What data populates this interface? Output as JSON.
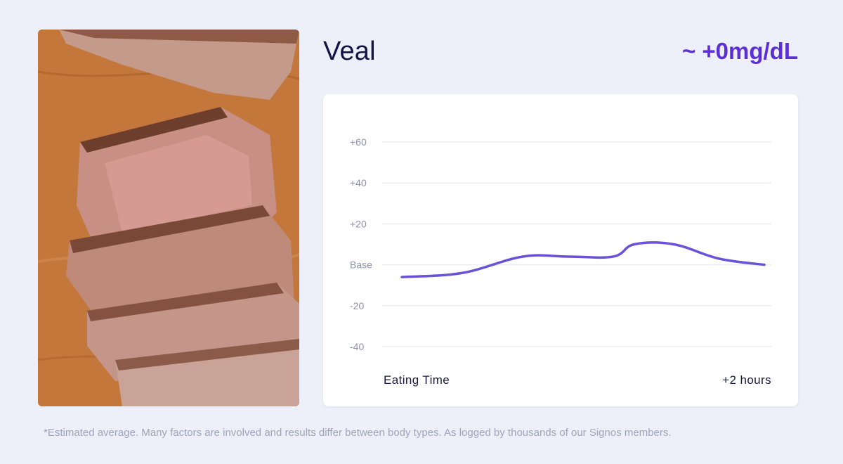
{
  "food": {
    "name": "Veal",
    "glucose_change": "~ +0mg/dL",
    "image": "sliced-veal-roast-photo"
  },
  "chart_data": {
    "type": "line",
    "title": "",
    "xlabel": "",
    "ylabel": "",
    "x_labels": [
      "Eating Time",
      "+2 hours"
    ],
    "y_ticks": [
      {
        "value": 60,
        "label": "+60"
      },
      {
        "value": 40,
        "label": "+40"
      },
      {
        "value": 20,
        "label": "+20"
      },
      {
        "value": 0,
        "label": "Base"
      },
      {
        "value": -20,
        "label": "-20"
      },
      {
        "value": -40,
        "label": "-40"
      }
    ],
    "ylim": [
      -40,
      60
    ],
    "xlim": [
      0,
      120
    ],
    "grid": true,
    "series": [
      {
        "color": "#6a52d8",
        "x": [
          0,
          20,
          40,
          55,
          70,
          77,
          90,
          105,
          120
        ],
        "y": [
          -6,
          -4,
          4,
          4,
          4,
          10,
          10,
          3,
          0
        ]
      }
    ]
  },
  "footnote": "*Estimated average. Many factors are involved and results differ between body types. As logged by thousands of our Signos members."
}
